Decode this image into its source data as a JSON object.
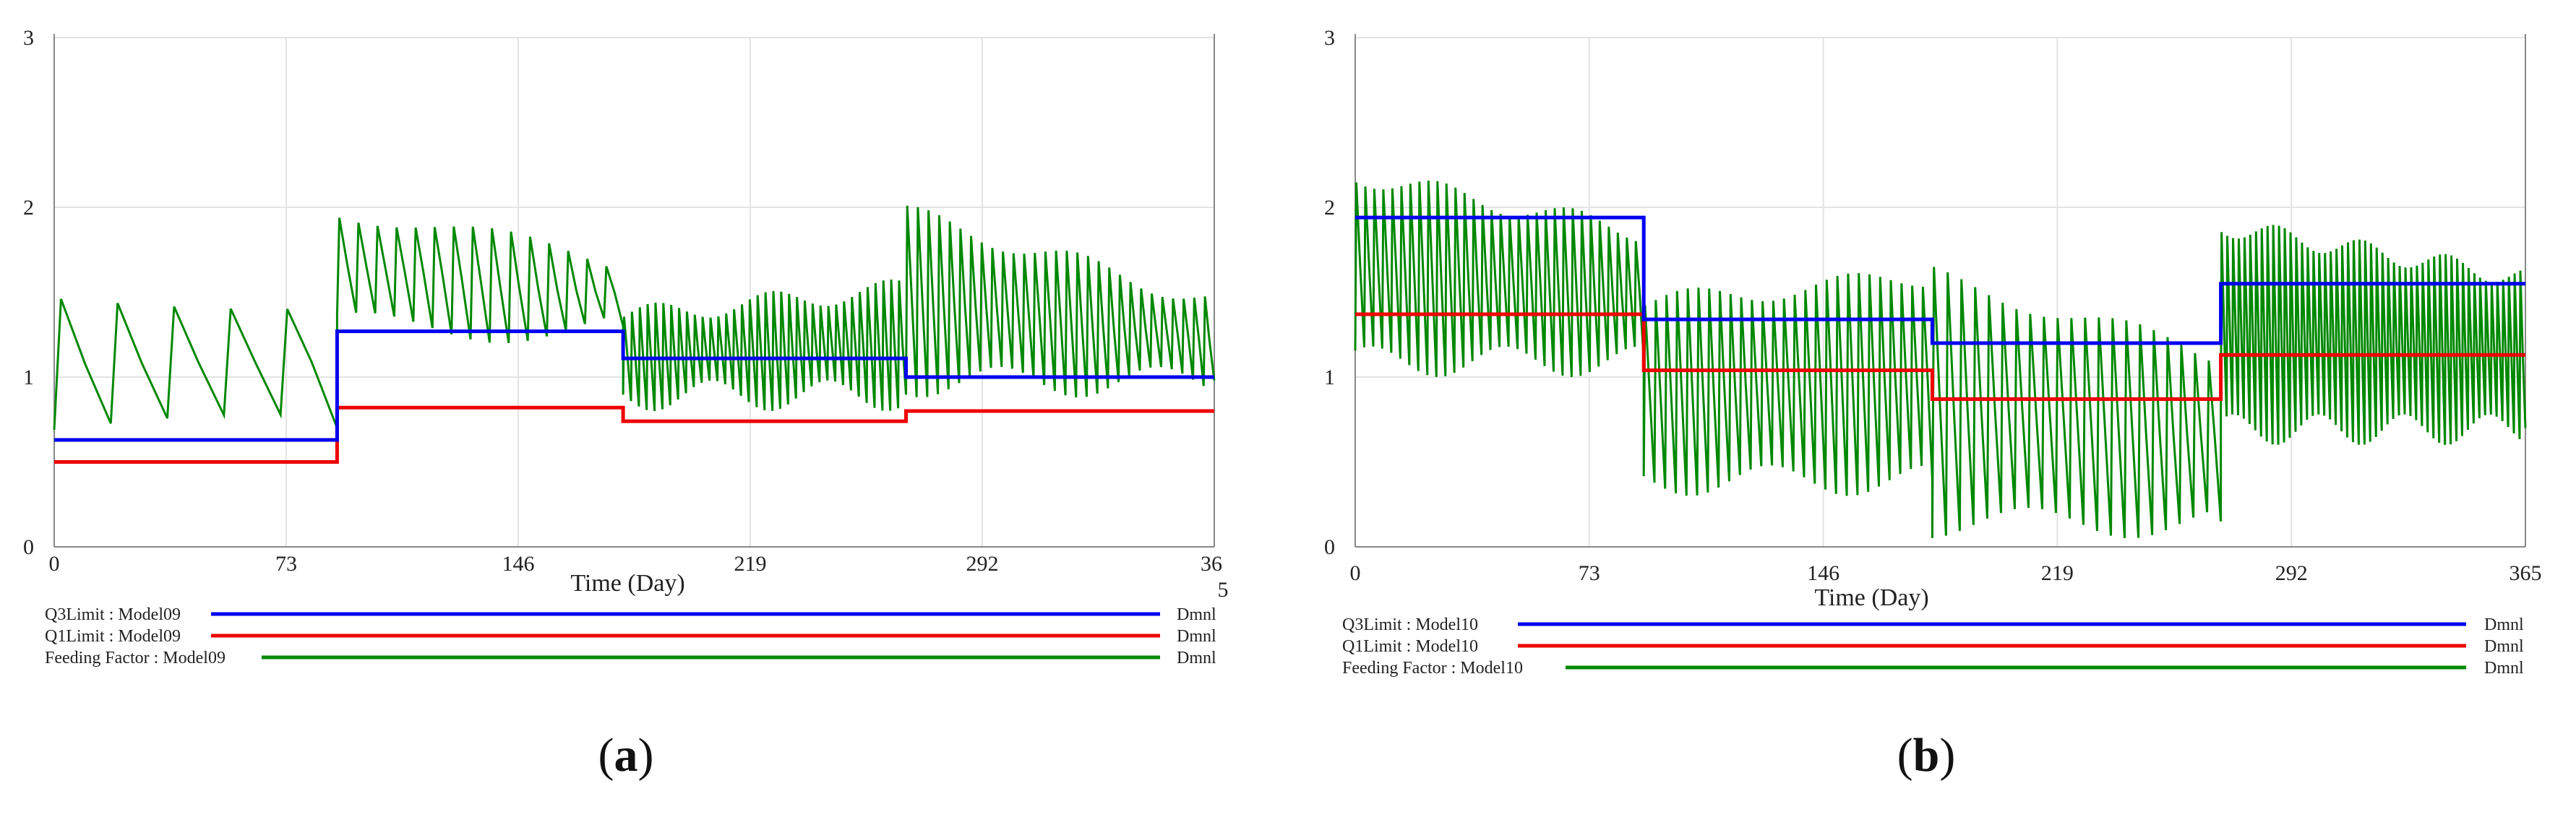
{
  "chart_data": [
    {
      "type": "line",
      "panel": "a",
      "caption_letter": "a",
      "x_ticks": [
        "0",
        "73",
        "146",
        "219",
        "292"
      ],
      "x_last_tick": [
        "36",
        "5"
      ],
      "xlabel": "Time (Day)",
      "y_ticks": [
        "0",
        "1",
        "2",
        "3"
      ],
      "xlim": [
        0,
        365
      ],
      "ylim": [
        0,
        3
      ],
      "grid": true,
      "series": [
        {
          "name": "Q3Limit : Model09",
          "unit": "Dmnl",
          "color": "#0000ee",
          "steps": [
            [
              0,
              0.63
            ],
            [
              89,
              0.63
            ],
            [
              89,
              1.27
            ],
            [
              179,
              1.27
            ],
            [
              179,
              1.11
            ],
            [
              268,
              1.11
            ],
            [
              268,
              1.0
            ],
            [
              365,
              1.0
            ]
          ]
        },
        {
          "name": "Q1Limit : Model09",
          "unit": "Dmnl",
          "color": "#ee0000",
          "steps": [
            [
              0,
              0.5
            ],
            [
              89,
              0.5
            ],
            [
              89,
              0.82
            ],
            [
              179,
              0.82
            ],
            [
              179,
              0.74
            ],
            [
              268,
              0.74
            ],
            [
              268,
              0.8
            ],
            [
              365,
              0.8
            ]
          ]
        },
        {
          "name": "Feeding Factor : Model09",
          "unit": "Dmnl",
          "color": "#008800",
          "segments": [
            {
              "from": 0,
              "to": 89,
              "period": 17,
              "low": 0.6,
              "high": 1.52,
              "phase": 4
            },
            {
              "from": 89,
              "to": 179,
              "period": 6,
              "low": 1.2,
              "high": 2.05,
              "end_high": 1.75
            },
            {
              "from": 179,
              "to": 268,
              "period": 2.5,
              "low": 0.8,
              "high": 1.42,
              "end_high": 1.58
            },
            {
              "from": 268,
              "to": 365,
              "period": 3.4,
              "low": 0.88,
              "high": 2.02,
              "end_high": 1.52
            }
          ]
        }
      ]
    },
    {
      "type": "line",
      "panel": "b",
      "caption_letter": "b",
      "x_ticks": [
        "0",
        "73",
        "146",
        "219",
        "292",
        "365"
      ],
      "xlabel": "Time (Day)",
      "y_ticks": [
        "0",
        "1",
        "2",
        "3"
      ],
      "xlim": [
        0,
        365
      ],
      "ylim": [
        0,
        3
      ],
      "grid": true,
      "series": [
        {
          "name": "Q3Limit : Model10",
          "unit": "Dmnl",
          "color": "#0000ee",
          "steps": [
            [
              0,
              1.94
            ],
            [
              90,
              1.94
            ],
            [
              90,
              1.34
            ],
            [
              180,
              1.34
            ],
            [
              180,
              1.2
            ],
            [
              270,
              1.2
            ],
            [
              270,
              1.55
            ],
            [
              365,
              1.55
            ]
          ]
        },
        {
          "name": "Q1Limit : Model10",
          "unit": "Dmnl",
          "color": "#ee0000",
          "steps": [
            [
              0,
              1.37
            ],
            [
              90,
              1.37
            ],
            [
              90,
              1.04
            ],
            [
              180,
              1.04
            ],
            [
              180,
              0.87
            ],
            [
              270,
              0.87
            ],
            [
              270,
              1.13
            ],
            [
              365,
              1.13
            ]
          ]
        },
        {
          "name": "Feeding Factor : Model10",
          "unit": "Dmnl",
          "color": "#008800",
          "segments": [
            {
              "from": 0,
              "to": 90,
              "period": 2.8,
              "low": 1.0,
              "high": 2.25,
              "end_high": 1.92
            },
            {
              "from": 90,
              "to": 180,
              "period": 3.3,
              "low": 0.3,
              "high": 1.5,
              "end_high": 1.65
            },
            {
              "from": 180,
              "to": 270,
              "period": 4.2,
              "low": 0.05,
              "high": 1.65,
              "end_high": 1.2
            },
            {
              "from": 270,
              "to": 365,
              "period": 1.8,
              "low": 0.6,
              "high": 1.95,
              "end_high": 1.65
            }
          ]
        }
      ]
    }
  ]
}
